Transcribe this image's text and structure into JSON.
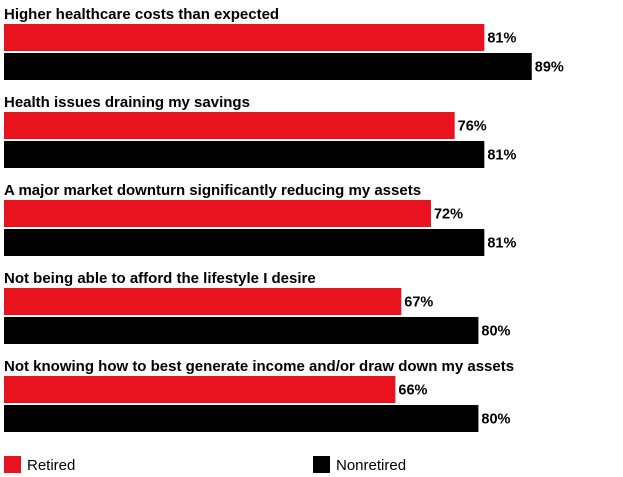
{
  "chart_data": {
    "type": "bar",
    "orientation": "horizontal",
    "categories": [
      "Higher healthcare costs than expected",
      "Health issues draining my savings",
      "A major market downturn significantly reducing my assets",
      "Not being able to afford the lifestyle I desire",
      "Not knowing how to best generate income and/or draw down my assets"
    ],
    "series": [
      {
        "name": "Retired",
        "color": "#e8131f",
        "values": [
          81,
          76,
          72,
          67,
          66
        ],
        "labels": [
          "81%",
          "76%",
          "72%",
          "67%",
          "66%"
        ]
      },
      {
        "name": "Nonretired",
        "color": "#000000",
        "values": [
          89,
          81,
          81,
          80,
          80
        ],
        "labels": [
          "89%",
          "81%",
          "81%",
          "80%",
          "80%"
        ]
      }
    ],
    "xlim": [
      0,
      100
    ],
    "grid": false,
    "legend": "bottom"
  }
}
